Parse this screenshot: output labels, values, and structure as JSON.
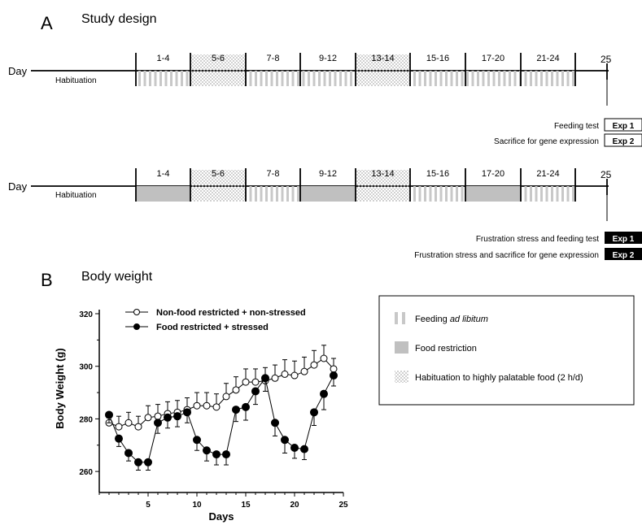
{
  "panel_a": {
    "letter": "A",
    "title": "Study design",
    "day_label": "Day",
    "habituation_label": "Habituation",
    "end_day": "25",
    "periods": [
      "1-4",
      "5-6",
      "7-8",
      "9-12",
      "13-14",
      "15-16",
      "17-20",
      "21-24"
    ],
    "timeline1_fill": [
      "feeding",
      "habituation",
      "feeding",
      "feeding",
      "habituation",
      "feeding",
      "feeding",
      "feeding"
    ],
    "timeline2_fill": [
      "restriction",
      "habituation",
      "feeding",
      "restriction",
      "habituation",
      "feeding",
      "restriction",
      "feeding"
    ],
    "timeline1_exps": [
      {
        "text": "Feeding test",
        "tag": "Exp 1"
      },
      {
        "text": "Sacrifice for gene expression",
        "tag": "Exp 2"
      }
    ],
    "timeline2_exps": [
      {
        "text": "Frustration stress and feeding test",
        "tag": "Exp 1"
      },
      {
        "text": "Frustration stress and sacrifice for gene expression",
        "tag": "Exp 2"
      }
    ]
  },
  "panel_b": {
    "letter": "B",
    "title": "Body weight"
  },
  "legend_box": {
    "feeding_prefix": "Feeding ",
    "feeding_italic": "ad libitum",
    "restriction": "Food restriction",
    "habituation": "Habituation to highly palatable food (2 h/d)"
  },
  "colors": {
    "restriction_fill": "#c0c0c0",
    "stripe": "#c8c8c8",
    "dots": "#b0b0b0",
    "exp2_bg": "#000000"
  },
  "chart_data": {
    "type": "line",
    "xlabel": "Days",
    "ylabel": "Body Weight (g)",
    "xlim": [
      0,
      25
    ],
    "ylim": [
      252,
      320
    ],
    "xticks": [
      5,
      10,
      15,
      20,
      25
    ],
    "yticks": [
      260,
      280,
      300,
      320
    ],
    "x": [
      1,
      2,
      3,
      4,
      5,
      6,
      7,
      8,
      9,
      10,
      11,
      12,
      13,
      14,
      15,
      16,
      17,
      18,
      19,
      20,
      21,
      22,
      23,
      24
    ],
    "series": [
      {
        "name": "Non-food restricted + non-stressed",
        "marker": "open",
        "values": [
          278.5,
          277,
          278.5,
          277,
          280.5,
          281,
          282,
          282.5,
          283.5,
          285,
          285,
          284.5,
          288.5,
          291,
          294,
          294,
          294.5,
          295.5,
          297,
          296.5,
          298,
          300.5,
          303,
          299
        ],
        "errors": [
          4,
          4,
          4,
          4,
          4.5,
          4.5,
          4.5,
          4.5,
          4.5,
          5,
          5,
          5,
          5,
          5,
          5,
          5,
          5,
          5,
          5.5,
          5.5,
          5.5,
          5.5,
          5,
          4
        ]
      },
      {
        "name": "Food restricted + stressed",
        "marker": "filled",
        "values": [
          281.5,
          272.5,
          267,
          263.5,
          263.5,
          278.5,
          280.5,
          281,
          282.5,
          272,
          268,
          266.5,
          266.5,
          283.5,
          284.5,
          290.5,
          295.5,
          278.5,
          272,
          269,
          268.5,
          282.5,
          289.5,
          296.5
        ],
        "errors": [
          3,
          3,
          3,
          3,
          3,
          4,
          4,
          4,
          4,
          4,
          4,
          4,
          4,
          4.5,
          5,
          5,
          5,
          5,
          5,
          4,
          4,
          5,
          6,
          4
        ]
      }
    ]
  }
}
